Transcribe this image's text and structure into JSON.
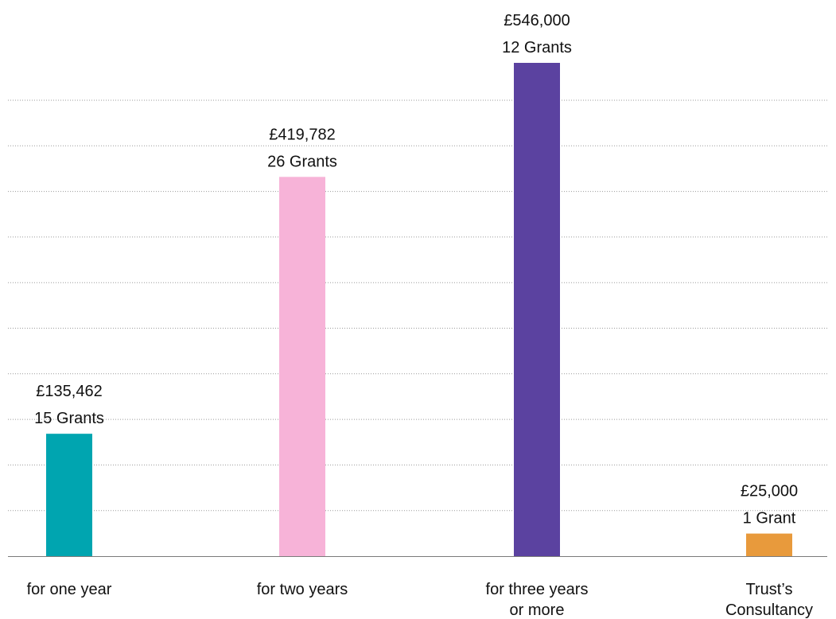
{
  "chart_data": {
    "type": "bar",
    "title": "",
    "xlabel": "",
    "ylabel": "",
    "ylim": [
      0,
      575000
    ],
    "grid": true,
    "categories": [
      [
        "for one year"
      ],
      [
        "for two years"
      ],
      [
        "for three years",
        "or more"
      ],
      [
        "Trust’s",
        "Consultancy"
      ]
    ],
    "values": [
      135462,
      419782,
      546000,
      25000
    ],
    "value_labels": [
      "£135,462",
      "£419,782",
      "£546,000",
      "£25,000"
    ],
    "grant_labels": [
      "15 Grants",
      "26 Grants",
      "12 Grants",
      "1 Grant"
    ],
    "colors": [
      "#00a5b0",
      "#f7b3d8",
      "#5b42a0",
      "#e89a3c"
    ]
  }
}
